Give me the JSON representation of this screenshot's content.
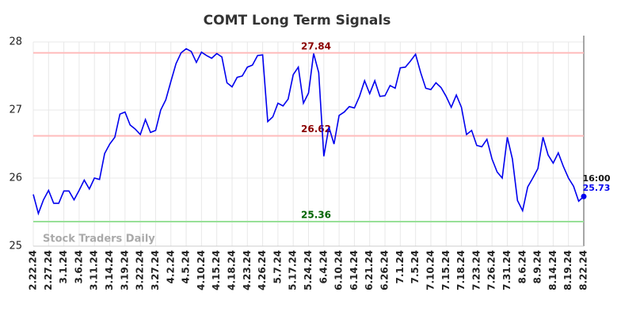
{
  "chart_data": {
    "type": "line",
    "title": "COMT Long Term Signals",
    "categories": [
      "2.22.24",
      null,
      null,
      "2.27.24",
      null,
      null,
      "3.1.24",
      null,
      null,
      "3.6.24",
      null,
      null,
      "3.11.24",
      null,
      null,
      "3.14.24",
      null,
      null,
      "3.19.24",
      null,
      null,
      "3.22.24",
      null,
      null,
      "3.27.24",
      null,
      null,
      "4.2.24",
      null,
      null,
      "4.5.24",
      null,
      null,
      "4.10.24",
      null,
      null,
      "4.15.24",
      null,
      null,
      "4.18.24",
      null,
      null,
      "4.23.24",
      null,
      null,
      "4.26.24",
      null,
      null,
      "5.7.24",
      null,
      null,
      "5.17.24",
      null,
      null,
      "5.24.24",
      null,
      null,
      "6.4.24",
      null,
      null,
      "6.10.24",
      null,
      null,
      "6.14.24",
      null,
      null,
      "6.21.24",
      null,
      null,
      "6.26.24",
      null,
      null,
      "7.1.24",
      null,
      null,
      "7.5.24",
      null,
      null,
      "7.10.24",
      null,
      null,
      "7.15.24",
      null,
      null,
      "7.18.24",
      null,
      null,
      "7.23.24",
      null,
      null,
      "7.26.24",
      null,
      null,
      "7.31.24",
      null,
      null,
      "8.6.24",
      null,
      null,
      "8.9.24",
      null,
      null,
      "8.14.24",
      null,
      null,
      "8.19.24",
      null,
      null,
      "8.22.24"
    ],
    "series": [
      {
        "color": "#0000ee",
        "values": [
          25.76,
          25.48,
          25.68,
          25.82,
          25.63,
          25.63,
          25.81,
          25.81,
          25.68,
          25.82,
          25.97,
          25.84,
          26.0,
          25.98,
          26.36,
          26.5,
          26.6,
          26.94,
          26.97,
          26.78,
          26.72,
          26.64,
          26.86,
          26.67,
          26.7,
          27.0,
          27.15,
          27.42,
          27.68,
          27.84,
          27.9,
          27.86,
          27.7,
          27.85,
          27.8,
          27.76,
          27.83,
          27.78,
          27.4,
          27.34,
          27.48,
          27.5,
          27.63,
          27.66,
          27.8,
          27.81,
          26.83,
          26.9,
          27.1,
          27.06,
          27.16,
          27.52,
          27.63,
          27.1,
          27.25,
          27.83,
          27.55,
          26.32,
          26.75,
          26.5,
          26.92,
          26.97,
          27.05,
          27.03,
          27.2,
          27.43,
          27.24,
          27.43,
          27.2,
          27.21,
          27.36,
          27.32,
          27.62,
          27.63,
          27.72,
          27.82,
          27.55,
          27.32,
          27.3,
          27.4,
          27.33,
          27.2,
          27.04,
          27.22,
          27.04,
          26.64,
          26.7,
          26.48,
          26.46,
          26.57,
          26.28,
          26.09,
          26.0,
          26.6,
          26.28,
          25.67,
          25.52,
          25.87,
          26.0,
          26.14,
          26.6,
          26.34,
          26.22,
          26.37,
          26.17,
          26.0,
          25.88,
          25.66,
          25.73
        ]
      }
    ],
    "ylim": [
      25,
      28
    ],
    "yticks": [
      25,
      26,
      27,
      28
    ],
    "grid": true,
    "hlines": [
      {
        "value": 27.84,
        "color": "#ffbcbc",
        "label_color": "#8b0000"
      },
      {
        "value": 26.62,
        "color": "#ffbcbc",
        "label_color": "#8b0000"
      },
      {
        "value": 25.36,
        "color": "#98e098",
        "label_color": "#006400"
      }
    ],
    "last_time": "16:00",
    "watermark": "Stock Traders Daily"
  }
}
